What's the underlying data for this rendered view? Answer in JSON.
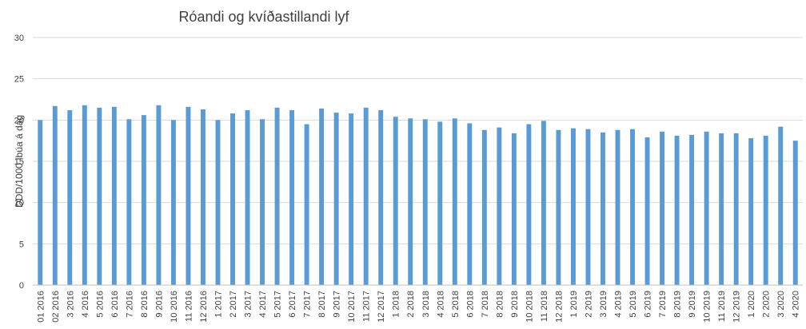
{
  "chart_data": {
    "type": "bar",
    "title": "Róandi og kvíðastillandi lyf",
    "ylabel": "DDD/1000 íbúa á dag",
    "xlabel": "",
    "ylim": [
      0,
      30
    ],
    "yticks": [
      0,
      5,
      10,
      15,
      20,
      25,
      30
    ],
    "grid": true,
    "legend": "none",
    "colors": {
      "bar": "#5b9bd5",
      "grid": "#d9d9d9",
      "text": "#404040"
    },
    "categories": [
      "01 2016",
      "02 2016",
      "3 2016",
      "4 2016",
      "5 2016",
      "6 2016",
      "7 2016",
      "8 2016",
      "9 2016",
      "10 2016",
      "11 2016",
      "12 2016",
      "1 2017",
      "2 2017",
      "3 2017",
      "4 2017",
      "5 2017",
      "6 2017",
      "7 2017",
      "8 2017",
      "9 2017",
      "10 2017",
      "11 2017",
      "12 2017",
      "1 2018",
      "2 2018",
      "3 2018",
      "4 2018",
      "5 2018",
      "6 2018",
      "7 2018",
      "8 2018",
      "9 2018",
      "10 2018",
      "11 2018",
      "12 2018",
      "1 2019",
      "2 2019",
      "3 2019",
      "4 2019",
      "5 2019",
      "6 2019",
      "7 2019",
      "8 2019",
      "9 2019",
      "10 2019",
      "11 2019",
      "12 2019",
      "1 2020",
      "2 2020",
      "3 2020",
      "4 2020"
    ],
    "values": [
      20.0,
      21.7,
      21.2,
      21.8,
      21.5,
      21.6,
      20.1,
      20.6,
      21.8,
      20.0,
      21.6,
      21.3,
      20.0,
      20.8,
      21.2,
      20.1,
      21.5,
      21.2,
      19.5,
      21.4,
      20.9,
      20.8,
      21.5,
      21.2,
      20.4,
      20.2,
      20.1,
      19.8,
      20.2,
      19.6,
      18.8,
      19.1,
      18.4,
      19.5,
      19.9,
      18.8,
      19.0,
      18.9,
      18.5,
      18.8,
      18.9,
      17.9,
      18.6,
      18.1,
      18.2,
      18.6,
      18.4,
      18.4,
      17.8,
      18.1,
      19.2,
      17.5
    ]
  }
}
